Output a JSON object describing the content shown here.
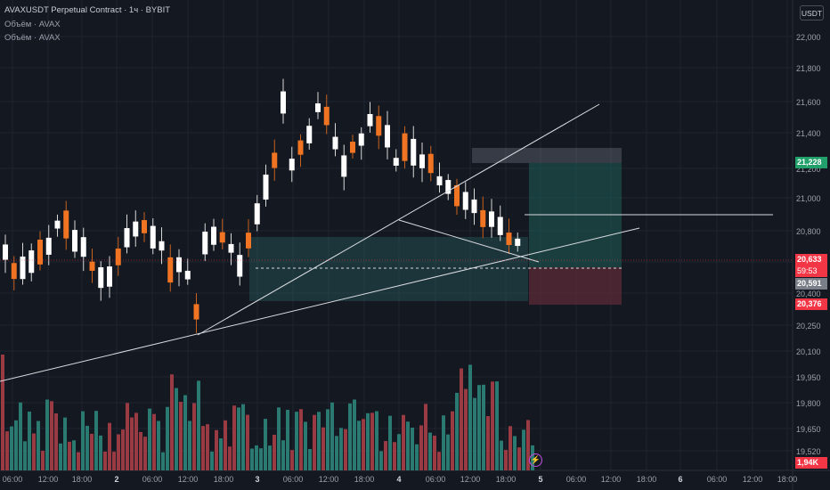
{
  "header": {
    "title": "AVAXUSDT Perpetual Contract · 1ч · BYBIT",
    "indicator1": "Объём · AVAX",
    "indicator2": "Объём · AVAX"
  },
  "currency_button": "USDT",
  "price_axis": [
    "22,000",
    "21,800",
    "21,600",
    "21,400",
    "21,200",
    "21,000",
    "20,800",
    "20,400",
    "20,250",
    "20,100",
    "19,950",
    "19,800",
    "19,650",
    "19,520"
  ],
  "time_axis": [
    {
      "label": "06:00",
      "bold": false
    },
    {
      "label": "12:00",
      "bold": false
    },
    {
      "label": "18:00",
      "bold": false
    },
    {
      "label": "2",
      "bold": true
    },
    {
      "label": "06:00",
      "bold": false
    },
    {
      "label": "12:00",
      "bold": false
    },
    {
      "label": "18:00",
      "bold": false
    },
    {
      "label": "3",
      "bold": true
    },
    {
      "label": "06:00",
      "bold": false
    },
    {
      "label": "12:00",
      "bold": false
    },
    {
      "label": "18:00",
      "bold": false
    },
    {
      "label": "4",
      "bold": true
    },
    {
      "label": "06:00",
      "bold": false
    },
    {
      "label": "12:00",
      "bold": false
    },
    {
      "label": "18:00",
      "bold": false
    },
    {
      "label": "5",
      "bold": true
    },
    {
      "label": "06:00",
      "bold": false
    },
    {
      "label": "12:00",
      "bold": false
    },
    {
      "label": "18:00",
      "bold": false
    },
    {
      "label": "6",
      "bold": true
    },
    {
      "label": "06:00",
      "bold": false
    },
    {
      "label": "12:00",
      "bold": false
    },
    {
      "label": "18:00",
      "bold": false
    }
  ],
  "badges": {
    "take_profit": "21,228",
    "current_price": "20,633",
    "countdown": "59:53",
    "entry": "20,591",
    "stop_loss": "20,376",
    "volume": "1,94K"
  },
  "colors": {
    "background": "#141821",
    "bull_candle": "#ffffff",
    "bear_candle": "#f07422",
    "volume_up": "#2b7a72",
    "volume_down": "#9a3b44",
    "tp_zone": "#1f5e58",
    "sl_zone": "#6b2f3b",
    "badge_green": "#22a06b",
    "badge_red": "#f23645",
    "badge_gray": "#7a7e88"
  },
  "icons": [
    "lightning-icon"
  ]
}
